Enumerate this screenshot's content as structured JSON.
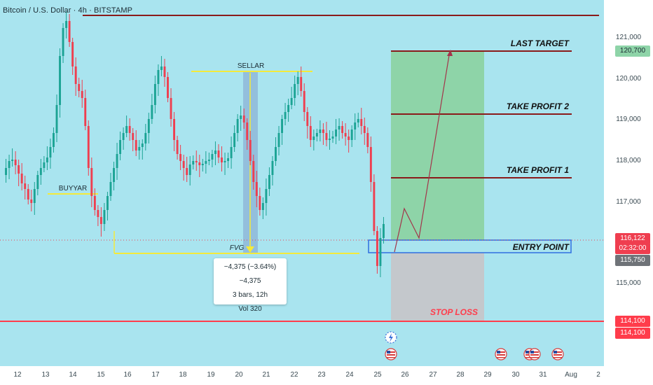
{
  "title": "Bitcoin / U.S. Dollar · 4h · BITSTAMP",
  "colors": {
    "background": "#a9e4ef",
    "up": "#1ba394",
    "down": "#ef3e4f",
    "resistance": "#8a1a1a",
    "fvg_line": "#f4ea3a",
    "profit_zone": "#8ed4a8",
    "loss_zone": "#c4c8cc",
    "entry_box": "#2f6ee0",
    "stop_line": "#ff3c4b"
  },
  "y_axis": {
    "ticks": [
      "121,000",
      "120,000",
      "119,000",
      "118,000",
      "117,000",
      "115,000"
    ],
    "tags": {
      "target": "120,700",
      "current_price": "116,122",
      "countdown": "02:32:00",
      "entry": "115,750",
      "stop_1": "114,100",
      "stop_2": "114,100"
    }
  },
  "x_axis": {
    "ticks": [
      "12",
      "13",
      "14",
      "15",
      "16",
      "17",
      "18",
      "19",
      "20",
      "21",
      "22",
      "23",
      "24",
      "25",
      "26",
      "27",
      "28",
      "29",
      "30",
      "31",
      "Aug",
      "2"
    ]
  },
  "annotations": {
    "sellar": "SELLAR",
    "buyyar": "BUYYAR",
    "fvg": "FVG",
    "last_target": "LAST TARGET",
    "take_profit_2": "TAKE PROFIT 2",
    "take_profit_1": "TAKE PROFIT 1",
    "entry_point": "ENTRY POINT",
    "stop_loss": "STOP LOSS"
  },
  "measure": {
    "change": "−4,375 (−3.64%) −4,375",
    "bars": "3 bars, 12h",
    "volume": "Vol 320"
  },
  "event_icons": [
    "flash-icon",
    "us-flag-event-icon",
    "us-flag-event-icon",
    "us-flag-event-icon",
    "us-flag-event-icon",
    "us-flag-event-icon"
  ]
}
